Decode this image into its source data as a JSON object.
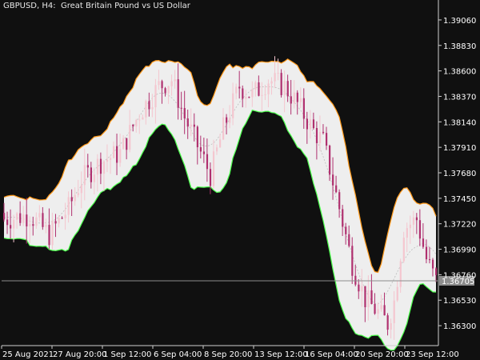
{
  "header": {
    "symbol_timeframe": "GBPUSD, H4:",
    "description": "Great Britain Pound vs US Dollar"
  },
  "colors": {
    "background": "#101010",
    "axis_text": "#ffffff",
    "bull_candle": "#f4c6cf",
    "bear_candle": "#b0306f",
    "band_fill": "#ffffff",
    "upper_band": "#ff9a1a",
    "lower_band": "#4dff4d",
    "center_line": "#bdbdbd",
    "price_line": "#8c8c8c",
    "price_tag_bg": "#8c8c8c",
    "price_tag_text": "#ffffff"
  },
  "chart_data": {
    "type": "candlestick",
    "symbol": "GBPUSD",
    "timeframe": "H4",
    "ylim": [
      1.3612,
      1.3924
    ],
    "y_ticks": [
      "1.39060",
      "1.38830",
      "1.38600",
      "1.38370",
      "1.38140",
      "1.37910",
      "1.37680",
      "1.37450",
      "1.37220",
      "1.36990",
      "1.36760",
      "1.36530",
      "1.36300"
    ],
    "x_ticks": [
      "25 Aug 2021",
      "27 Aug 20:00",
      "1 Sep 12:00",
      "6 Sep 04:00",
      "8 Sep 20:00",
      "13 Sep 12:00",
      "16 Sep 04:00",
      "20 Sep 20:00",
      "23 Sep 12:00"
    ],
    "current_price": 1.36705,
    "current_price_label": "1.36705",
    "candle_count": 135,
    "indicator": {
      "type": "bands",
      "upper_color": "orange",
      "lower_color": "lime",
      "fill": "white",
      "center_line": "dotted"
    },
    "close_path": [
      {
        "bar": 0,
        "close": 1.3726
      },
      {
        "bar": 8,
        "close": 1.373
      },
      {
        "bar": 14,
        "close": 1.3712
      },
      {
        "bar": 20,
        "close": 1.3736
      },
      {
        "bar": 24,
        "close": 1.3762
      },
      {
        "bar": 30,
        "close": 1.3778
      },
      {
        "bar": 36,
        "close": 1.3786
      },
      {
        "bar": 42,
        "close": 1.3822
      },
      {
        "bar": 48,
        "close": 1.3846
      },
      {
        "bar": 52,
        "close": 1.3852
      },
      {
        "bar": 56,
        "close": 1.3818
      },
      {
        "bar": 61,
        "close": 1.3786
      },
      {
        "bar": 64,
        "close": 1.3766
      },
      {
        "bar": 68,
        "close": 1.3808
      },
      {
        "bar": 73,
        "close": 1.3846
      },
      {
        "bar": 77,
        "close": 1.3838
      },
      {
        "bar": 82,
        "close": 1.3852
      },
      {
        "bar": 87,
        "close": 1.3846
      },
      {
        "bar": 91,
        "close": 1.383
      },
      {
        "bar": 96,
        "close": 1.3806
      },
      {
        "bar": 99,
        "close": 1.3796
      },
      {
        "bar": 104,
        "close": 1.3736
      },
      {
        "bar": 108,
        "close": 1.3686
      },
      {
        "bar": 112,
        "close": 1.3654
      },
      {
        "bar": 116,
        "close": 1.3642
      },
      {
        "bar": 119,
        "close": 1.3632
      },
      {
        "bar": 121,
        "close": 1.3652
      },
      {
        "bar": 124,
        "close": 1.3718
      },
      {
        "bar": 128,
        "close": 1.3726
      },
      {
        "bar": 131,
        "close": 1.369
      },
      {
        "bar": 134,
        "close": 1.367
      }
    ]
  }
}
